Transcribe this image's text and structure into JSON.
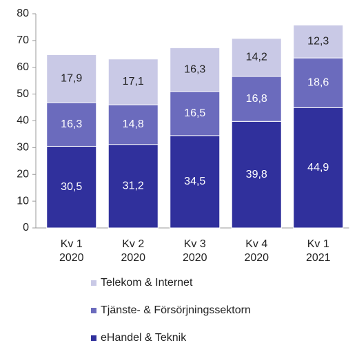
{
  "chart_data": {
    "type": "stacked_bar",
    "categories": [
      [
        "Kv 1",
        "2020"
      ],
      [
        "Kv 2",
        "2020"
      ],
      [
        "Kv 3",
        "2020"
      ],
      [
        "Kv 4",
        "2020"
      ],
      [
        "Kv 1",
        "2021"
      ]
    ],
    "series": [
      {
        "name": "eHandel & Teknik",
        "color": "#30309c",
        "values": [
          30.5,
          31.2,
          34.5,
          39.8,
          44.9
        ],
        "value_labels": [
          "30,5",
          "31,2",
          "34,5",
          "39,8",
          "44,9"
        ],
        "label_color": "#ffffff"
      },
      {
        "name": "Tjänste- & Försörjningssektorn",
        "color": "#6b6bbd",
        "values": [
          16.3,
          14.8,
          16.5,
          16.8,
          18.6
        ],
        "value_labels": [
          "16,3",
          "14,8",
          "16,5",
          "16,8",
          "18,6"
        ],
        "label_color": "#ffffff"
      },
      {
        "name": "Telekom & Internet",
        "color": "#c9c9e6",
        "values": [
          17.9,
          17.1,
          16.3,
          14.2,
          12.3
        ],
        "value_labels": [
          "17,9",
          "17,1",
          "16,3",
          "14,2",
          "12,3"
        ],
        "label_color": "#222222"
      }
    ],
    "ylim": [
      0,
      80
    ],
    "yticks": [
      0,
      10,
      20,
      30,
      40,
      50,
      60,
      70,
      80
    ]
  }
}
